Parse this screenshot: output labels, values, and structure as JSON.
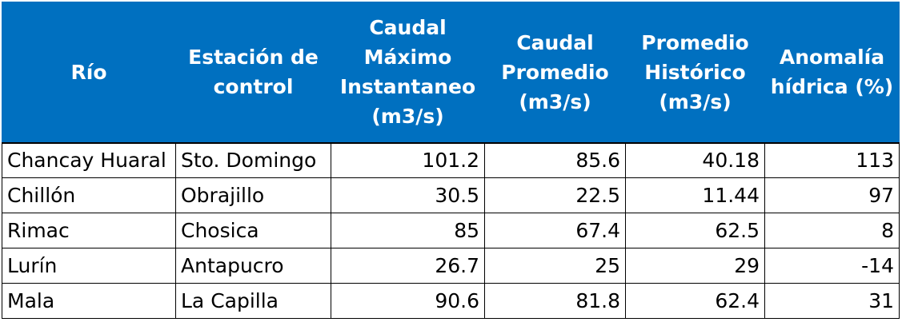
{
  "table": {
    "headers": [
      "Río",
      "Estación de control",
      "Caudal Máximo Instantaneo (m3/s)",
      "Caudal Promedio (m3/s)",
      "Promedio Histórico (m3/s)",
      "Anomalía hídrica (%)"
    ],
    "rows": [
      [
        "Chancay Huaral",
        "Sto. Domingo",
        "101.2",
        "85.6",
        "40.18",
        "113"
      ],
      [
        "Chillón",
        "Obrajillo",
        "30.5",
        "22.5",
        "11.44",
        "97"
      ],
      [
        "Rimac",
        "Chosica",
        "85",
        "67.4",
        "62.5",
        "8"
      ],
      [
        "Lurín",
        "Antapucro",
        "26.7",
        "25",
        "29",
        "-14"
      ],
      [
        "Mala",
        "La Capilla",
        "90.6",
        "81.8",
        "62.4",
        "31"
      ]
    ]
  },
  "colors": {
    "header_bg": "#0070c0",
    "header_text": "#ffffff",
    "border": "#000000"
  }
}
